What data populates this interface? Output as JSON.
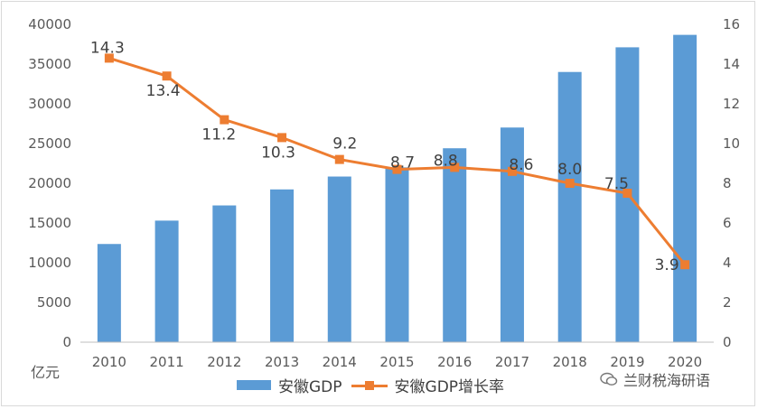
{
  "chart_data": {
    "type": "bar",
    "categories": [
      "2010",
      "2011",
      "2012",
      "2013",
      "2014",
      "2015",
      "2016",
      "2017",
      "2018",
      "2019",
      "2020"
    ],
    "series": [
      {
        "name": "安徽GDP",
        "type": "bar",
        "axis": "left",
        "values": [
          12359,
          15300,
          17212,
          19229,
          20848,
          22005,
          24408,
          27018,
          34010,
          37114,
          38681
        ]
      },
      {
        "name": "安徽GDP增长率",
        "type": "line",
        "axis": "right",
        "values": [
          14.3,
          13.4,
          11.2,
          10.3,
          9.2,
          8.7,
          8.8,
          8.6,
          8.0,
          7.5,
          3.9
        ],
        "labels": [
          "14.3",
          "13.4",
          "11.2",
          "10.3",
          "9.2",
          "8.7",
          "8.8",
          "8.6",
          "8.0",
          "7.5",
          "3.9"
        ]
      }
    ],
    "y_left": {
      "ylim": [
        0,
        40000
      ],
      "ticks": [
        "0",
        "5000",
        "10000",
        "15000",
        "20000",
        "25000",
        "30000",
        "35000",
        "40000"
      ],
      "unit": "亿元"
    },
    "y_right": {
      "ylim": [
        0,
        16
      ],
      "ticks": [
        "0",
        "2",
        "4",
        "6",
        "8",
        "10",
        "12",
        "14",
        "16"
      ]
    },
    "legend_position": "bottom",
    "grid": false,
    "colors": {
      "bar": "#5b9bd5",
      "line": "#ed7d31"
    }
  },
  "watermark": {
    "text": "兰财税海研语"
  }
}
